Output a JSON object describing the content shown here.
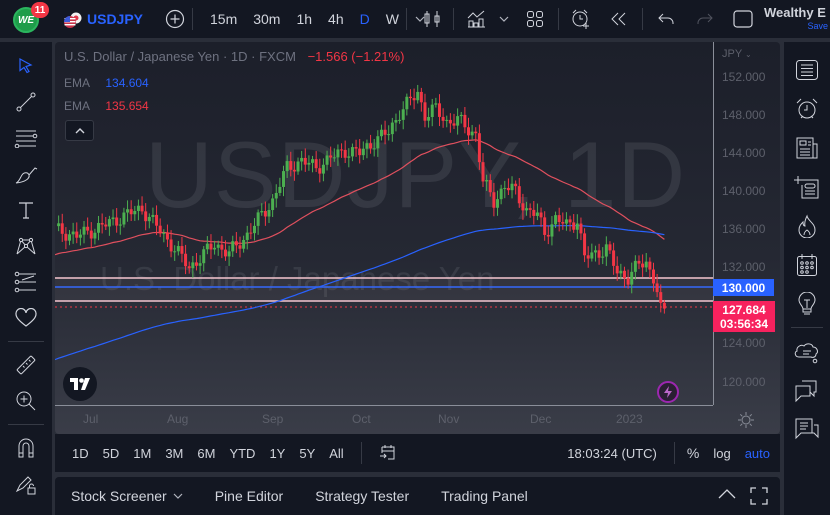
{
  "topbar": {
    "notification_count": "11",
    "avatar_initials": "WE",
    "symbol": "USDJPY",
    "timeframes": [
      "15m",
      "30m",
      "1h",
      "4h",
      "D",
      "W"
    ],
    "active_timeframe": "D",
    "layout_title": "Wealthy E",
    "save_label": "Save"
  },
  "chart": {
    "title": "U.S. Dollar / Japanese Yen · 1D · FXCM",
    "change": "−1.566 (−1.21%)",
    "ema": [
      {
        "label": "EMA",
        "value": "134.604",
        "color": "#2962ff"
      },
      {
        "label": "EMA",
        "value": "135.654",
        "color": "#f23645"
      }
    ],
    "watermark_symbol": "USDJPY, 1D",
    "watermark_name": "U.S. Dollar / Japanese Yen",
    "currency": "JPY",
    "price_ticks": [
      "152.000",
      "148.000",
      "144.000",
      "140.000",
      "136.000",
      "132.000",
      "124.000",
      "120.000"
    ],
    "horizontal_line_label": "130.000",
    "last_price": "127.684",
    "countdown": "03:56:34",
    "time_ticks": [
      "Jul",
      "Aug",
      "Sep",
      "Oct",
      "Nov",
      "Dec",
      "2023"
    ],
    "colors": {
      "up": "#26a69a",
      "up_candle": "#4caf50",
      "down": "#f23645",
      "ema_fast": "#e0505e",
      "ema_slow": "#2962ff",
      "hline": "#f5c6d0",
      "hline_blue": "#2962ff"
    }
  },
  "chart_data": {
    "type": "candlestick",
    "title": "U.S. Dollar / Japanese Yen · 1D · FXCM",
    "ylabel": "JPY",
    "ylim": [
      117.5,
      154
    ],
    "x_labels": [
      "Jul",
      "Aug",
      "Sep",
      "Oct",
      "Nov",
      "Dec",
      "2023"
    ],
    "y_ticks": [
      120,
      124,
      128,
      132,
      136,
      140,
      144,
      148,
      152
    ],
    "ema_values": {
      "blue": 134.604,
      "red": 135.654
    },
    "horizontal_levels": [
      131.1,
      130.0,
      128.3
    ],
    "last_price": 127.684,
    "change": -1.566,
    "change_pct": -1.21
  },
  "range_bar": {
    "ranges": [
      "1D",
      "5D",
      "1M",
      "3M",
      "6M",
      "YTD",
      "1Y",
      "5Y",
      "All"
    ],
    "clock": "18:03:24 (UTC)",
    "percent": "%",
    "log": "log",
    "auto": "auto"
  },
  "bottom_panel": {
    "tabs": [
      "Stock Screener",
      "Pine Editor",
      "Strategy Tester",
      "Trading Panel"
    ]
  }
}
